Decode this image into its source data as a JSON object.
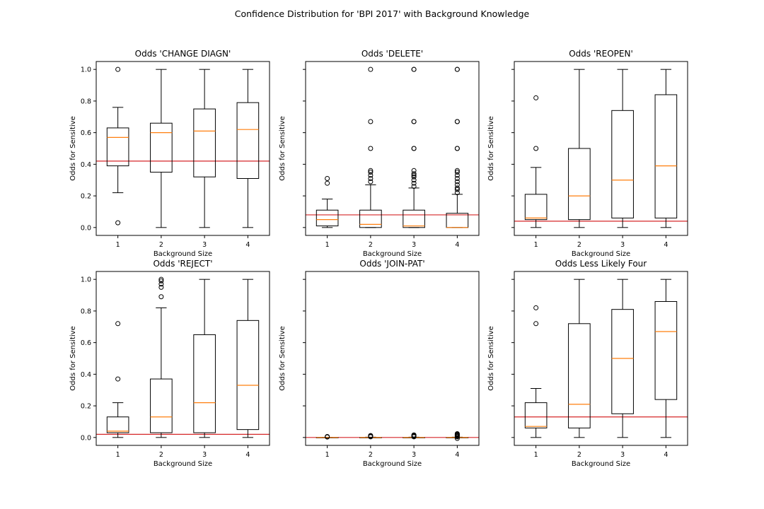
{
  "title": "Confidence Distribution for 'BPI 2017' with Background Knowledge",
  "colors": {
    "median": "#ff7f0e",
    "reference": "#d62728",
    "box": "#000000"
  },
  "chart_data": [
    {
      "type": "box",
      "title": "Odds 'CHANGE DIAGN'",
      "xlabel": "Background Size",
      "ylabel": "Odds for Sensitive",
      "categories": [
        "1",
        "2",
        "3",
        "4"
      ],
      "ylim": [
        -0.05,
        1.05
      ],
      "yticks": [
        0.0,
        0.2,
        0.4,
        0.6,
        0.8,
        1.0
      ],
      "ytick_labels": [
        "0.0",
        "0.2",
        "0.4",
        "0.6",
        "0.8",
        "1.0"
      ],
      "reference_line": 0.42,
      "boxes": [
        {
          "whisker_low": 0.22,
          "q1": 0.39,
          "median": 0.57,
          "q3": 0.63,
          "whisker_high": 0.76,
          "fliers": [
            0.03,
            1.0
          ]
        },
        {
          "whisker_low": 0.0,
          "q1": 0.35,
          "median": 0.6,
          "q3": 0.66,
          "whisker_high": 1.0,
          "fliers": []
        },
        {
          "whisker_low": 0.0,
          "q1": 0.32,
          "median": 0.61,
          "q3": 0.75,
          "whisker_high": 1.0,
          "fliers": []
        },
        {
          "whisker_low": 0.0,
          "q1": 0.31,
          "median": 0.62,
          "q3": 0.79,
          "whisker_high": 1.0,
          "fliers": []
        }
      ]
    },
    {
      "type": "box",
      "title": "Odds 'DELETE'",
      "xlabel": "Background Size",
      "ylabel": "Odds for Sensitive",
      "categories": [
        "1",
        "2",
        "3",
        "4"
      ],
      "ylim": [
        -0.05,
        1.05
      ],
      "yticks": [
        0.0,
        0.2,
        0.4,
        0.6,
        0.8,
        1.0
      ],
      "ytick_labels": [],
      "reference_line": 0.08,
      "boxes": [
        {
          "whisker_low": 0.0,
          "q1": 0.01,
          "median": 0.05,
          "q3": 0.11,
          "whisker_high": 0.18,
          "fliers": [
            0.28,
            0.31
          ]
        },
        {
          "whisker_low": 0.0,
          "q1": 0.0,
          "median": 0.02,
          "q3": 0.11,
          "whisker_high": 0.27,
          "fliers": [
            0.29,
            0.31,
            0.33,
            0.35,
            0.36,
            0.5,
            0.67,
            1.0
          ]
        },
        {
          "whisker_low": 0.0,
          "q1": 0.0,
          "median": 0.01,
          "q3": 0.11,
          "whisker_high": 0.25,
          "fliers": [
            0.26,
            0.28,
            0.3,
            0.32,
            0.33,
            0.34,
            0.36,
            0.5,
            0.5,
            0.67,
            0.67,
            1.0,
            1.0
          ]
        },
        {
          "whisker_low": 0.0,
          "q1": 0.0,
          "median": 0.0,
          "q3": 0.09,
          "whisker_high": 0.21,
          "fliers": [
            0.22,
            0.24,
            0.25,
            0.27,
            0.29,
            0.31,
            0.33,
            0.35,
            0.36,
            0.5,
            0.5,
            0.67,
            0.67,
            1.0,
            1.0
          ]
        }
      ]
    },
    {
      "type": "box",
      "title": "Odds 'REOPEN'",
      "xlabel": "Background Size",
      "ylabel": "Odds for Sensitive",
      "categories": [
        "1",
        "2",
        "3",
        "4"
      ],
      "ylim": [
        -0.05,
        1.05
      ],
      "yticks": [
        0.0,
        0.2,
        0.4,
        0.6,
        0.8,
        1.0
      ],
      "ytick_labels": [],
      "reference_line": 0.04,
      "boxes": [
        {
          "whisker_low": 0.0,
          "q1": 0.05,
          "median": 0.06,
          "q3": 0.21,
          "whisker_high": 0.38,
          "fliers": [
            0.5,
            0.82
          ]
        },
        {
          "whisker_low": 0.0,
          "q1": 0.05,
          "median": 0.2,
          "q3": 0.5,
          "whisker_high": 1.0,
          "fliers": []
        },
        {
          "whisker_low": 0.0,
          "q1": 0.06,
          "median": 0.3,
          "q3": 0.74,
          "whisker_high": 1.0,
          "fliers": []
        },
        {
          "whisker_low": 0.0,
          "q1": 0.06,
          "median": 0.39,
          "q3": 0.84,
          "whisker_high": 1.0,
          "fliers": []
        }
      ]
    },
    {
      "type": "box",
      "title": "Odds 'REJECT'",
      "xlabel": "Background Size",
      "ylabel": "Odds for Sensitive",
      "categories": [
        "1",
        "2",
        "3",
        "4"
      ],
      "ylim": [
        -0.05,
        1.05
      ],
      "yticks": [
        0.0,
        0.2,
        0.4,
        0.6,
        0.8,
        1.0
      ],
      "ytick_labels": [
        "0.0",
        "0.2",
        "0.4",
        "0.6",
        "0.8",
        "1.0"
      ],
      "reference_line": 0.02,
      "boxes": [
        {
          "whisker_low": 0.0,
          "q1": 0.03,
          "median": 0.04,
          "q3": 0.13,
          "whisker_high": 0.22,
          "fliers": [
            0.37,
            0.72
          ]
        },
        {
          "whisker_low": 0.0,
          "q1": 0.03,
          "median": 0.13,
          "q3": 0.37,
          "whisker_high": 0.82,
          "fliers": [
            0.89,
            0.95,
            0.97,
            0.99,
            1.0
          ]
        },
        {
          "whisker_low": 0.0,
          "q1": 0.03,
          "median": 0.22,
          "q3": 0.65,
          "whisker_high": 1.0,
          "fliers": []
        },
        {
          "whisker_low": 0.0,
          "q1": 0.05,
          "median": 0.33,
          "q3": 0.74,
          "whisker_high": 1.0,
          "fliers": []
        }
      ]
    },
    {
      "type": "box",
      "title": "Odds 'JOIN-PAT'",
      "xlabel": "Background Size",
      "ylabel": "Odds for Sensitive",
      "categories": [
        "1",
        "2",
        "3",
        "4"
      ],
      "ylim": [
        -0.05,
        1.05
      ],
      "yticks": [
        0.0,
        0.2,
        0.4,
        0.6,
        0.8,
        1.0
      ],
      "ytick_labels": [],
      "reference_line": 0.0,
      "boxes": [
        {
          "whisker_low": 0.0,
          "q1": 0.0,
          "median": 0.0,
          "q3": 0.0,
          "whisker_high": 0.0,
          "fliers": [
            0.003,
            0.006
          ]
        },
        {
          "whisker_low": 0.0,
          "q1": 0.0,
          "median": 0.0,
          "q3": 0.0,
          "whisker_high": 0.002,
          "fliers": [
            0.004,
            0.008,
            0.012
          ]
        },
        {
          "whisker_low": 0.0,
          "q1": 0.0,
          "median": 0.0,
          "q3": 0.0,
          "whisker_high": 0.002,
          "fliers": [
            0.004,
            0.008,
            0.012,
            0.016
          ]
        },
        {
          "whisker_low": 0.0,
          "q1": 0.0,
          "median": 0.0,
          "q3": 0.0,
          "whisker_high": 0.002,
          "fliers": [
            -0.006,
            0.004,
            0.008,
            0.012,
            0.016,
            0.02,
            0.024
          ]
        }
      ]
    },
    {
      "type": "box",
      "title": "Odds Less Likely Four",
      "xlabel": "Background Size",
      "ylabel": "Odds for Sensitive",
      "categories": [
        "1",
        "2",
        "3",
        "4"
      ],
      "ylim": [
        -0.05,
        1.05
      ],
      "yticks": [
        0.0,
        0.2,
        0.4,
        0.6,
        0.8,
        1.0
      ],
      "ytick_labels": [],
      "reference_line": 0.13,
      "boxes": [
        {
          "whisker_low": 0.0,
          "q1": 0.06,
          "median": 0.07,
          "q3": 0.22,
          "whisker_high": 0.31,
          "fliers": [
            0.72,
            0.82
          ]
        },
        {
          "whisker_low": 0.0,
          "q1": 0.06,
          "median": 0.21,
          "q3": 0.72,
          "whisker_high": 1.0,
          "fliers": []
        },
        {
          "whisker_low": 0.0,
          "q1": 0.15,
          "median": 0.5,
          "q3": 0.81,
          "whisker_high": 1.0,
          "fliers": []
        },
        {
          "whisker_low": 0.0,
          "q1": 0.24,
          "median": 0.67,
          "q3": 0.86,
          "whisker_high": 1.0,
          "fliers": []
        }
      ]
    }
  ]
}
